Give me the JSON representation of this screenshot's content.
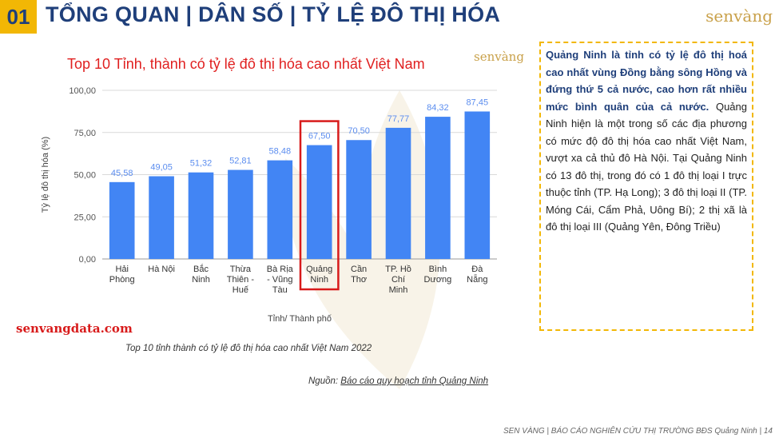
{
  "header": {
    "number": "01",
    "title": "TỔNG QUAN | DÂN SỐ | TỶ LỆ ĐÔ THỊ HÓA",
    "brand": "senvàng"
  },
  "chart_brand": "senvàng",
  "chart_data": {
    "type": "bar",
    "title": "Top 10 Tỉnh, thành có tỷ lệ đô thị hóa cao nhất Việt Nam",
    "xlabel": "Tỉnh/ Thành phố",
    "ylabel": "Tỷ lệ đô thị hóa (%)",
    "ylim": [
      0,
      100
    ],
    "yticks": [
      "0,00",
      "25,00",
      "50,00",
      "75,00",
      "100,00"
    ],
    "categories": [
      [
        "Hải",
        "Phòng"
      ],
      [
        "Hà Nội"
      ],
      [
        "Bắc",
        "Ninh"
      ],
      [
        "Thừa",
        "Thiên -",
        "Huế"
      ],
      [
        "Bà Rịa",
        "- Vũng",
        "Tàu"
      ],
      [
        "Quảng",
        "Ninh"
      ],
      [
        "Cần",
        "Thơ"
      ],
      [
        "TP. Hồ",
        "Chí",
        "Minh"
      ],
      [
        "Bình",
        "Dương"
      ],
      [
        "Đà",
        "Nẵng"
      ]
    ],
    "values": [
      45.58,
      49.05,
      51.32,
      52.81,
      58.48,
      67.5,
      70.5,
      77.77,
      84.32,
      87.45
    ],
    "value_labels": [
      "45,58",
      "49,05",
      "51,32",
      "52,81",
      "58,48",
      "67,50",
      "70,50",
      "77,77",
      "84,32",
      "87,45"
    ],
    "highlight_index": 5,
    "bar_color": "#4285f4",
    "label_color": "#5b8def",
    "highlight_color": "#d81b1b",
    "grid": true
  },
  "site": "senvangdata.com",
  "caption": "Top 10 tỉnh thành có tỷ lệ đô thị hóa cao nhất Việt Nam 2022",
  "source": {
    "prefix": "Nguồn: ",
    "text": "Báo cáo quy hoạch tỉnh Quảng Ninh"
  },
  "textbox": {
    "highlight": "Quảng Ninh là tỉnh có tỷ lệ đô thị hoá cao nhất vùng Đồng bằng sông Hồng và đứng thứ 5 cả nước, cao hơn rất nhiều mức bình quân của cả nước.",
    "body": " Quảng Ninh hiện là một trong số các địa phương có mức độ đô thị hóa cao nhất Việt Nam, vượt xa cả thủ đô Hà Nội. Tại Quảng Ninh có 13 đô thị, trong đó có 1 đô thị loại I trực thuộc tỉnh (TP. Hạ Long); 3 đô thị loại II (TP. Móng Cái, Cẩm Phả, Uông Bí); 2 thị xã là đô thị loại III (Quảng Yên, Đông Triều)"
  },
  "footer": "SEN VÀNG | BÁO CÁO NGHIÊN CỨU THỊ TRƯỜNG BĐS Quảng Ninh | 14"
}
